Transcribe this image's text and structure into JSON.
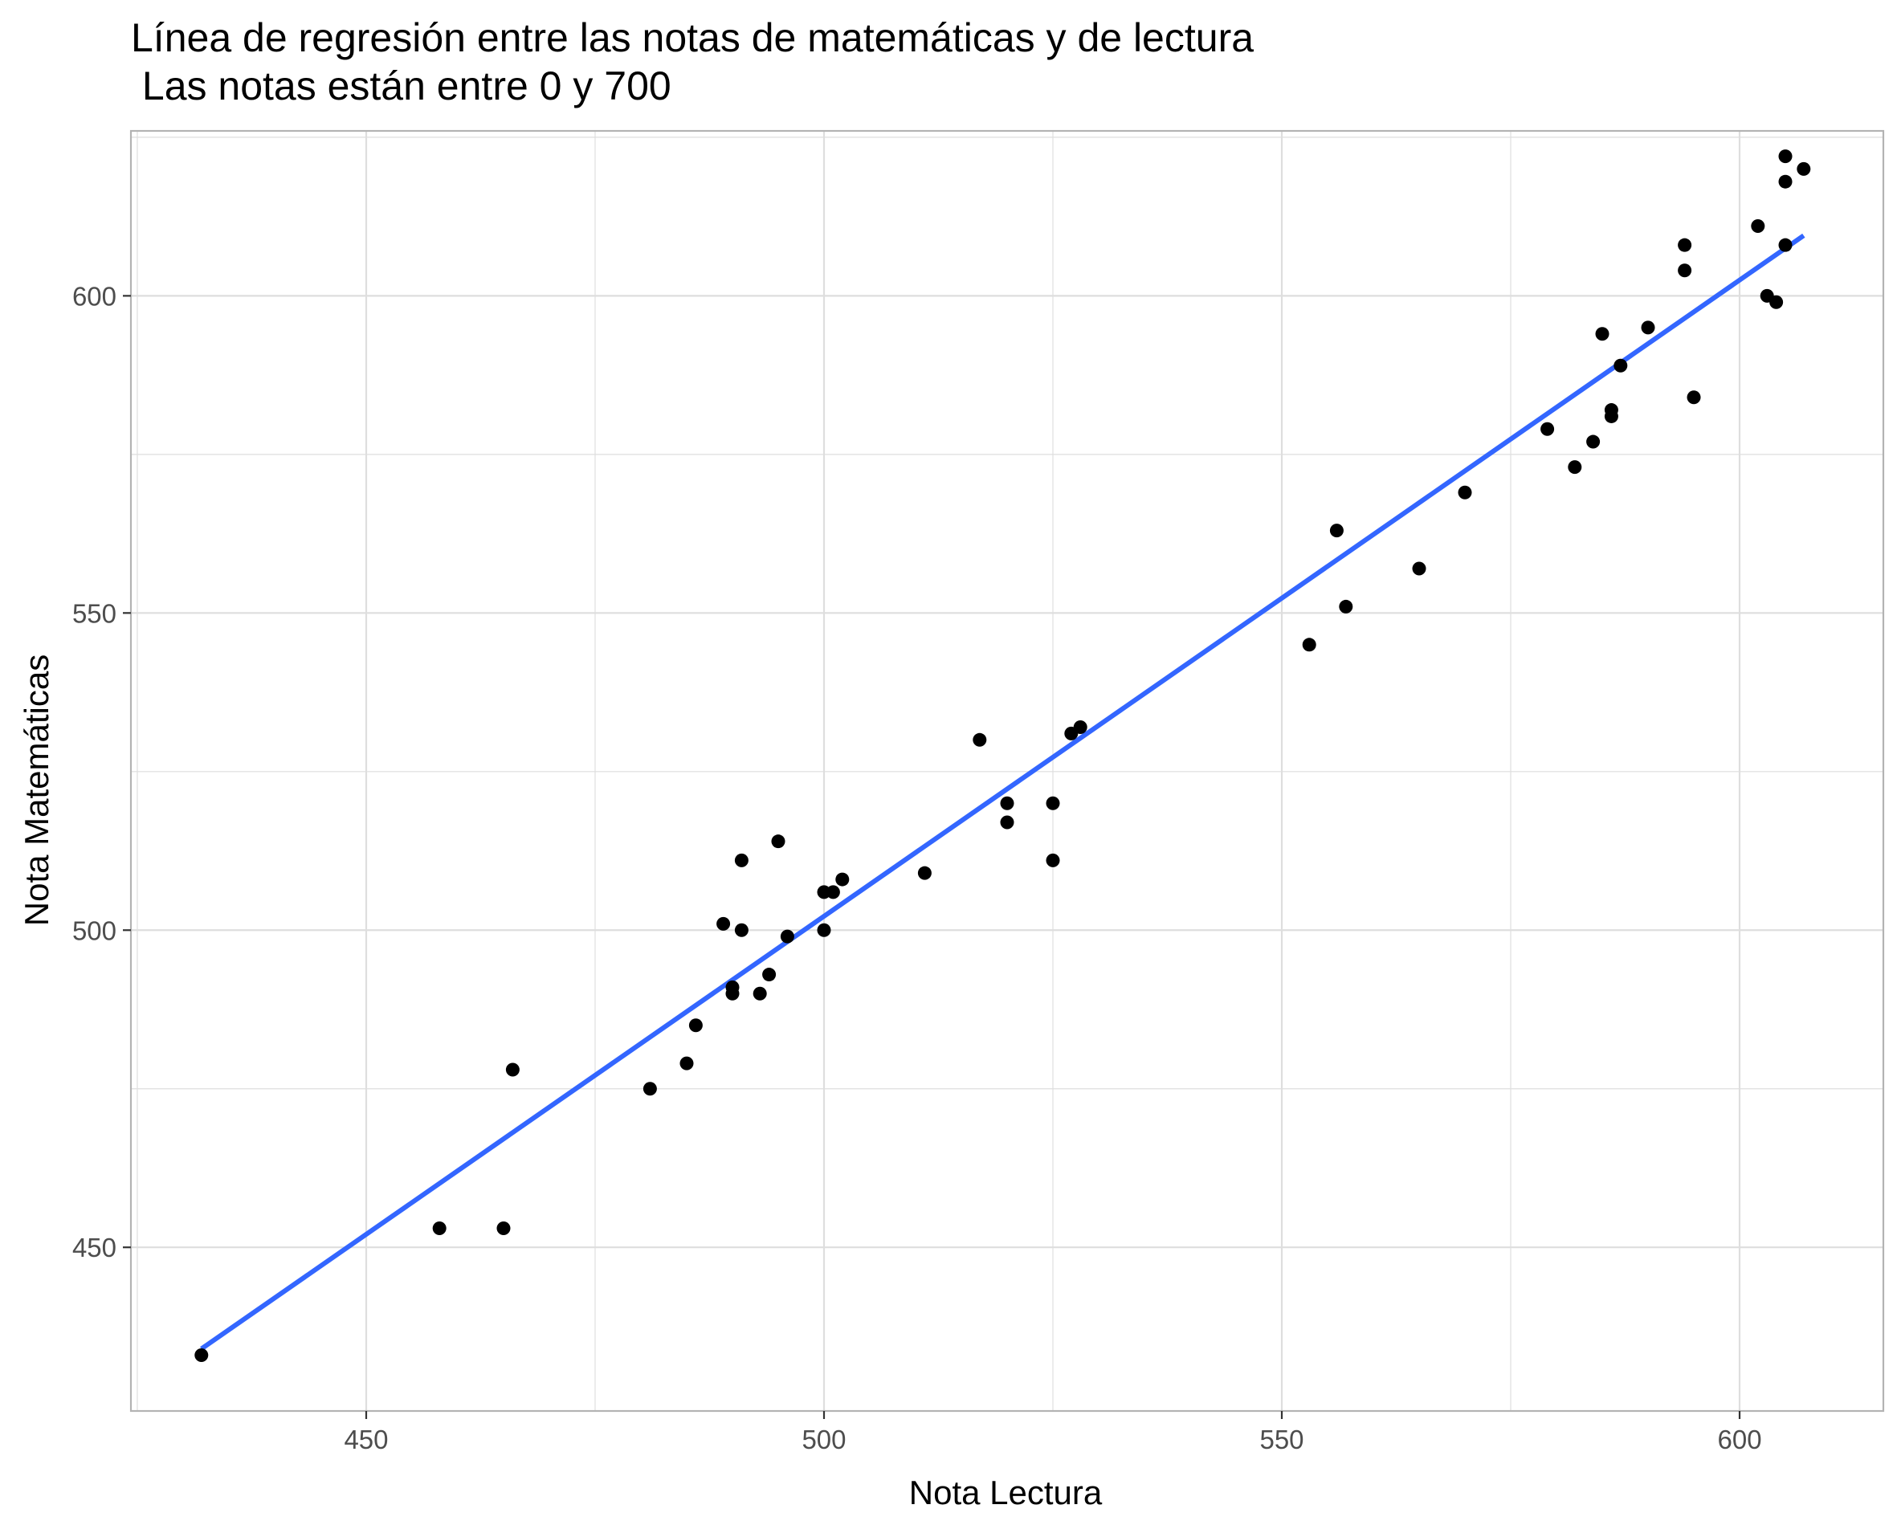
{
  "chart_data": {
    "type": "scatter",
    "title": "Línea de regresión entre las notas de matemáticas y de lectura",
    "subtitle": " Las notas están entre 0 y 700",
    "xlabel": "Nota Lectura",
    "ylabel": "Nota Matemáticas",
    "xlim": [
      424.3,
      615.7
    ],
    "ylim": [
      424.2,
      626.0
    ],
    "x_ticks": [
      450,
      500,
      550,
      600
    ],
    "x_tick_labels": [
      "450",
      "500",
      "550",
      "600"
    ],
    "y_ticks": [
      450,
      500,
      550,
      600
    ],
    "y_tick_labels": [
      "450",
      "500",
      "550",
      "600"
    ],
    "x_minor_ticks": [
      425,
      475,
      525,
      575
    ],
    "y_minor_ticks": [
      475,
      525,
      575,
      625
    ],
    "grid": true,
    "legend": "none",
    "colors": {
      "points": "#000000",
      "regression_line": "#3366FF",
      "grid": "#dedede",
      "panel_border": "#b3b3b3"
    },
    "series": [
      {
        "type": "scatter",
        "x": [
          432,
          458,
          465,
          466,
          481,
          485,
          486,
          489,
          490,
          490,
          491,
          491,
          493,
          494,
          495,
          496,
          500,
          500,
          501,
          502,
          511,
          517,
          520,
          520,
          525,
          525,
          527,
          528,
          553,
          556,
          557,
          565,
          570,
          579,
          582,
          584,
          585,
          586,
          586,
          587,
          590,
          594,
          594,
          595,
          602,
          603,
          604,
          605,
          605,
          605,
          607
        ],
        "y": [
          433,
          453,
          453,
          478,
          475,
          479,
          485,
          501,
          491,
          490,
          511,
          500,
          490,
          493,
          514,
          499,
          506,
          500,
          506,
          508,
          509,
          530,
          520,
          517,
          520,
          511,
          531,
          532,
          545,
          563,
          551,
          557,
          569,
          579,
          573,
          577,
          594,
          582,
          581,
          589,
          595,
          608,
          604,
          584,
          611,
          600,
          599,
          622,
          618,
          608,
          620
        ]
      },
      {
        "type": "line",
        "x": [
          432,
          607
        ],
        "y": [
          434.0,
          609.5
        ]
      }
    ]
  }
}
